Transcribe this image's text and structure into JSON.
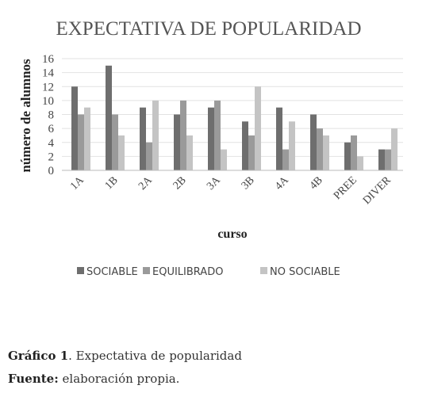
{
  "chart_data": {
    "type": "bar",
    "title": "EXPECTATIVA DE POPULARIDAD",
    "xlabel": "curso",
    "ylabel": "número de alumnos",
    "categories": [
      "1A",
      "1B",
      "2A",
      "2B",
      "3A",
      "3B",
      "4A",
      "4B",
      "PREE",
      "DIVER"
    ],
    "yticks": [
      "0",
      "2",
      "4",
      "6",
      "8",
      "10",
      "12",
      "14",
      "16"
    ],
    "ylim": [
      0,
      16
    ],
    "grid": true,
    "legend_position": "bottom",
    "series": [
      {
        "name": "SOCIABLE",
        "color": "#6e6e6e",
        "values": [
          12,
          15,
          9,
          8,
          9,
          7,
          9,
          8,
          4,
          3
        ]
      },
      {
        "name": "EQUILIBRADO",
        "color": "#9a9a9a",
        "values": [
          8,
          8,
          4,
          10,
          10,
          5,
          3,
          6,
          5,
          3
        ]
      },
      {
        "name": "NO SOCIABLE",
        "color": "#c4c4c4",
        "values": [
          9,
          5,
          10,
          5,
          3,
          12,
          7,
          5,
          2,
          6
        ]
      }
    ]
  },
  "caption": {
    "figure_label": "Gráfico 1",
    "figure_text": ". Expectativa de popularidad",
    "source_label": "Fuente:",
    "source_text": " elaboración propia."
  }
}
